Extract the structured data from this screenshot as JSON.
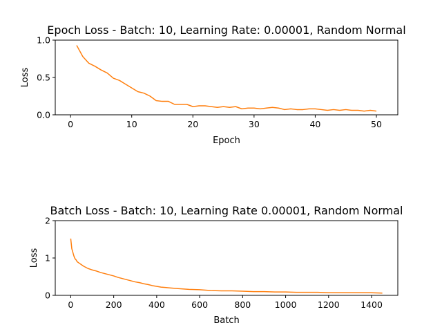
{
  "chart_data": [
    {
      "type": "line",
      "title": "Epoch Loss - Batch: 10, Learning Rate: 0.00001, Random Normal",
      "xlabel": "Epoch",
      "ylabel": "Loss",
      "xlim": [
        -2.5,
        53.5
      ],
      "ylim": [
        0,
        1.0
      ],
      "xticks": [
        0,
        10,
        20,
        30,
        40,
        50
      ],
      "yticks": [
        0.0,
        0.5,
        1.0
      ],
      "xtick_labels": [
        "0",
        "10",
        "20",
        "30",
        "40",
        "50"
      ],
      "ytick_labels": [
        "0.0",
        "0.5",
        "1.0"
      ],
      "grid": false,
      "color": "#ff7f0e",
      "series": [
        {
          "x": [
            1,
            2,
            3,
            4,
            5,
            6,
            7,
            8,
            9,
            10,
            11,
            12,
            13,
            14,
            15,
            16,
            17,
            18,
            19,
            20,
            21,
            22,
            23,
            24,
            25,
            26,
            27,
            28,
            29,
            30,
            31,
            32,
            33,
            34,
            35,
            36,
            37,
            38,
            39,
            40,
            41,
            42,
            43,
            44,
            45,
            46,
            47,
            48,
            49,
            50
          ],
          "values": [
            0.93,
            0.78,
            0.69,
            0.65,
            0.6,
            0.56,
            0.49,
            0.46,
            0.41,
            0.36,
            0.31,
            0.29,
            0.25,
            0.19,
            0.18,
            0.18,
            0.14,
            0.14,
            0.14,
            0.11,
            0.12,
            0.12,
            0.11,
            0.1,
            0.11,
            0.1,
            0.11,
            0.08,
            0.09,
            0.09,
            0.08,
            0.09,
            0.1,
            0.09,
            0.07,
            0.08,
            0.07,
            0.07,
            0.08,
            0.08,
            0.07,
            0.06,
            0.07,
            0.06,
            0.07,
            0.06,
            0.06,
            0.05,
            0.06,
            0.05
          ]
        }
      ]
    },
    {
      "type": "line",
      "title": "Batch Loss - Batch: 10, Learning Rate 0.00001, Random Normal",
      "xlabel": "Batch",
      "ylabel": "Loss",
      "xlim": [
        -72,
        1522
      ],
      "ylim": [
        0,
        2
      ],
      "xticks": [
        0,
        200,
        400,
        600,
        800,
        1000,
        1200,
        1400
      ],
      "yticks": [
        0,
        1,
        2
      ],
      "xtick_labels": [
        "0",
        "200",
        "400",
        "600",
        "800",
        "1000",
        "1200",
        "1400"
      ],
      "ytick_labels": [
        "0",
        "1",
        "2"
      ],
      "grid": false,
      "color": "#ff7f0e",
      "series": [
        {
          "x": [
            0,
            5,
            10,
            15,
            20,
            25,
            30,
            35,
            40,
            50,
            60,
            70,
            80,
            90,
            100,
            120,
            140,
            160,
            180,
            200,
            220,
            240,
            260,
            280,
            300,
            320,
            340,
            360,
            380,
            400,
            420,
            440,
            460,
            480,
            500,
            550,
            600,
            650,
            700,
            750,
            800,
            850,
            900,
            950,
            1000,
            1050,
            1100,
            1150,
            1200,
            1250,
            1300,
            1350,
            1400,
            1450
          ],
          "values": [
            1.52,
            1.25,
            1.15,
            1.05,
            0.98,
            0.95,
            0.9,
            0.88,
            0.86,
            0.82,
            0.78,
            0.75,
            0.72,
            0.7,
            0.68,
            0.65,
            0.61,
            0.58,
            0.55,
            0.52,
            0.48,
            0.45,
            0.42,
            0.39,
            0.36,
            0.34,
            0.31,
            0.29,
            0.26,
            0.24,
            0.22,
            0.21,
            0.2,
            0.19,
            0.18,
            0.16,
            0.15,
            0.13,
            0.12,
            0.12,
            0.11,
            0.1,
            0.1,
            0.09,
            0.09,
            0.08,
            0.08,
            0.08,
            0.07,
            0.07,
            0.07,
            0.07,
            0.07,
            0.06
          ]
        }
      ]
    }
  ]
}
